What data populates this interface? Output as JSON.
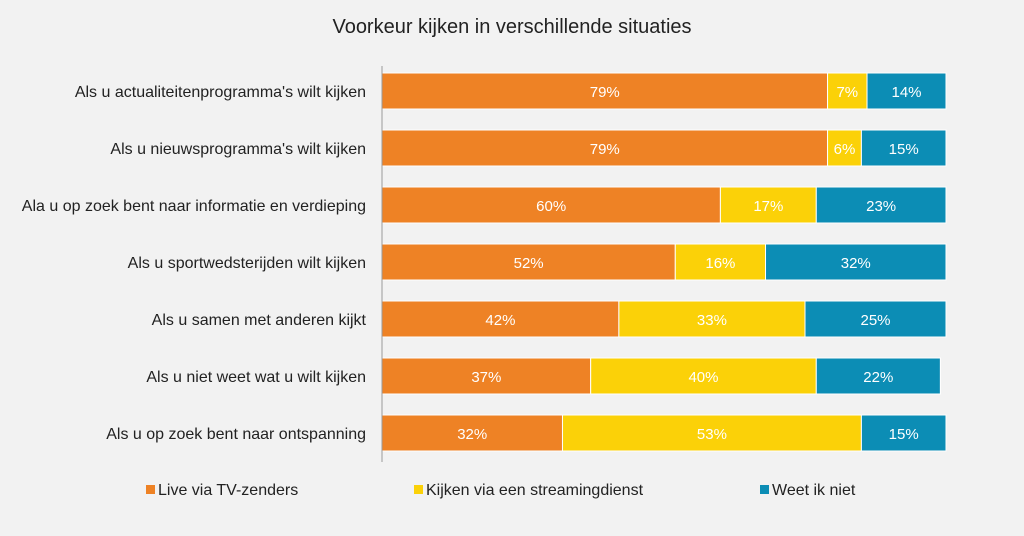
{
  "chart_data": {
    "type": "bar",
    "orientation": "horizontal",
    "stacked": true,
    "title": "Voorkeur kijken in verschillende situaties",
    "categories": [
      "Als u actualiteitenprogramma's wilt kijken",
      "Als u nieuwsprogramma's wilt kijken",
      "Ala u op zoek bent naar informatie en verdieping",
      "Als u sportwedsterijden wilt kijken",
      "Als u samen met anderen kijkt",
      "Als u niet weet wat u wilt kijken",
      "Als u op zoek bent naar ontspanning"
    ],
    "series": [
      {
        "name": "Live via TV-zenders",
        "color": "#ee8225",
        "values": [
          79,
          79,
          60,
          52,
          42,
          37,
          32
        ]
      },
      {
        "name": "Kijken via een streamingdienst",
        "color": "#fbd108",
        "values": [
          7,
          6,
          17,
          16,
          33,
          40,
          53
        ]
      },
      {
        "name": "Weet ik niet",
        "color": "#0c8db5",
        "values": [
          14,
          15,
          23,
          32,
          25,
          22,
          15
        ]
      }
    ],
    "value_format": "percent",
    "xlim": [
      0,
      100
    ],
    "grid": false,
    "legend_position": "bottom"
  }
}
